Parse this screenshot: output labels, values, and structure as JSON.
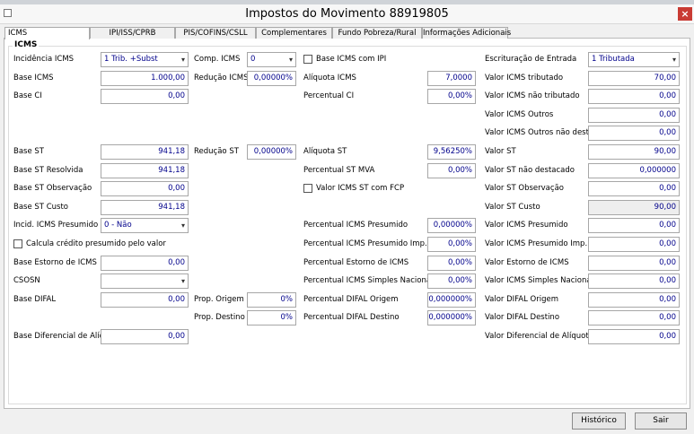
{
  "window": {
    "title": "Impostos do Movimento 88919805"
  },
  "tabs": [
    "ICMS",
    "IPI/ISS/CPRB",
    "PIS/COFINS/CSLL",
    "Complementares",
    "Fundo Pobreza/Rural",
    "Informações Adicionais"
  ],
  "group": {
    "title": "ICMS"
  },
  "rows": [
    {
      "left": {
        "label": "Incidência ICMS",
        "select": "1 Trib. +Subst"
      },
      "mid": {
        "label": "Comp. ICMS",
        "select": "0"
      },
      "third": {
        "checkbox": "Base ICMS com IPI"
      },
      "far": {
        "label": "Escrituração de Entrada",
        "select": "1 Tributada"
      }
    },
    {
      "left": {
        "label": "Base ICMS",
        "value": "1.000,00"
      },
      "mid": {
        "label": "Redução ICMS",
        "value": "0,00000%"
      },
      "third": {
        "label": "Alíquota ICMS",
        "value": "7,0000"
      },
      "far": {
        "label": "Valor ICMS tributado",
        "value": "70,00"
      }
    },
    {
      "left": {
        "label": "Base CI",
        "value": "0,00"
      },
      "third": {
        "label": "Percentual CI",
        "value": "0,00%"
      },
      "far": {
        "label": "Valor ICMS não tributado",
        "value": "0,00"
      }
    },
    {
      "far": {
        "label": "Valor ICMS Outros",
        "value": "0,00"
      }
    },
    {
      "far": {
        "label": "Valor ICMS Outros não dest.",
        "value": "0,00"
      }
    },
    {
      "left": {
        "label": "Base ST",
        "value": "941,18"
      },
      "mid": {
        "label": "Redução ST",
        "value": "0,00000%"
      },
      "third": {
        "label": "Alíquota ST",
        "value": "9,56250%"
      },
      "far": {
        "label": "Valor ST",
        "value": "90,00"
      }
    },
    {
      "left": {
        "label": "Base ST Resolvida",
        "value": "941,18"
      },
      "third": {
        "label": "Percentual ST MVA",
        "value": "0,00%"
      },
      "far": {
        "label": "Valor ST não destacado",
        "value": "0,000000"
      }
    },
    {
      "left": {
        "label": "Base ST Observação",
        "value": "0,00"
      },
      "third": {
        "checkbox": "Valor ICMS ST com FCP"
      },
      "far": {
        "label": "Valor ST Observação",
        "value": "0,00"
      }
    },
    {
      "left": {
        "label": "Base ST Custo",
        "value": "941,18"
      },
      "far": {
        "label": "Valor ST Custo",
        "value": "90,00",
        "readonly": true
      }
    },
    {
      "left": {
        "label": "Incid. ICMS Presumido",
        "select": "0 - Não"
      },
      "third": {
        "label": "Percentual ICMS Presumido",
        "value": "0,00000%"
      },
      "far": {
        "label": "Valor ICMS Presumido",
        "value": "0,00"
      }
    },
    {
      "left": {
        "checkbox": "Calcula crédito presumido pelo valor"
      },
      "third": {
        "label": "Percentual ICMS Presumido Imp. PR",
        "value": "0,00%"
      },
      "far": {
        "label": "Valor ICMS Presumido Imp. PR",
        "value": "0,00"
      }
    },
    {
      "left": {
        "label": "Base Estorno de ICMS",
        "value": "0,00"
      },
      "third": {
        "label": "Percentual Estorno de ICMS",
        "value": "0,00%"
      },
      "far": {
        "label": "Valor Estorno de ICMS",
        "value": "0,00"
      }
    },
    {
      "left": {
        "label": "CSOSN",
        "select": ""
      },
      "third": {
        "label": "Percentual ICMS Simples Nacional",
        "value": "0,00%"
      },
      "far": {
        "label": "Valor ICMS Simples Nacional",
        "value": "0,00"
      }
    },
    {
      "left": {
        "label": "Base DIFAL",
        "value": "0,00"
      },
      "mid": {
        "label": "Prop. Origem",
        "value": "0%"
      },
      "third": {
        "label": "Percentual DIFAL Origem",
        "value": "0,000000%"
      },
      "far": {
        "label": "Valor DIFAL Origem",
        "value": "0,00"
      }
    },
    {
      "mid": {
        "label": "Prop. Destino",
        "value": "0%"
      },
      "third": {
        "label": "Percentual DIFAL Destino",
        "value": "0,000000%"
      },
      "far": {
        "label": "Valor DIFAL Destino",
        "value": "0,00"
      }
    },
    {
      "left": {
        "label": "Base Diferencial de Alíq.",
        "value": "0,00"
      },
      "far": {
        "label": "Valor Diferencial de Alíquota",
        "value": "0,00"
      }
    }
  ],
  "buttons": [
    "Histórico",
    "Sair"
  ]
}
